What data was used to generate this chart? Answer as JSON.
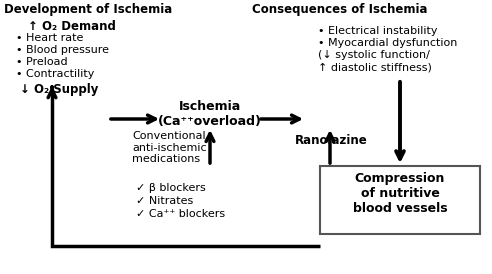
{
  "title_left": "Development of Ischemia",
  "title_right": "Consequences of Ischemia",
  "o2_demand_label": "↑ O₂ Demand",
  "o2_demand_items": [
    "Heart rate",
    "Blood pressure",
    "Preload",
    "Contractility"
  ],
  "o2_supply_label": "↓ O₂ Supply",
  "ischemia_label": "Ischemia\n(Ca⁺⁺overload)",
  "ranolazine_label": "Ranolazine",
  "conventional_label": "Conventional\nanti-ischemic\nmedications",
  "checklist": [
    "✓ β blockers",
    "✓ Nitrates",
    "✓ Ca⁺⁺ blockers"
  ],
  "consequences_line1": "• Electrical instability",
  "consequences_line2": "• Myocardial dysfunction",
  "consequences_line3": "(↓ systolic function/",
  "consequences_line4": "↑ diastolic stiffness)",
  "box_label": "Compression\nof nutritive\nblood vessels",
  "bg_color": "#ffffff",
  "text_color": "#000000",
  "arrow_color": "#000000"
}
